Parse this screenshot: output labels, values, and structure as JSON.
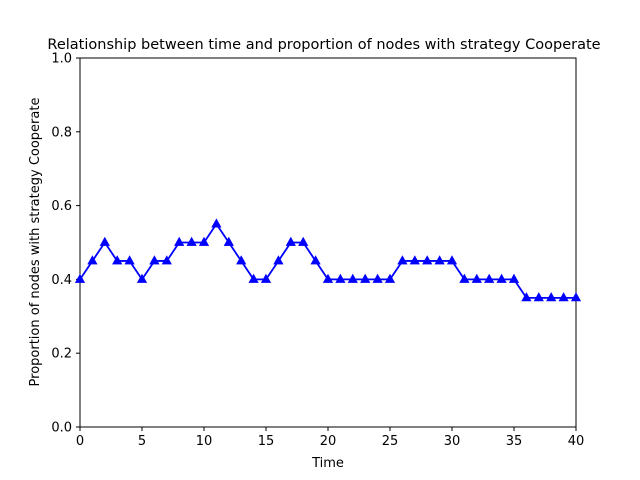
{
  "chart_data": {
    "type": "line",
    "title": "Relationship between time and proportion of nodes with strategy Cooperate",
    "xlabel": "Time",
    "ylabel": "Proportion of nodes with strategy Cooperate",
    "xlim": [
      0,
      40
    ],
    "ylim": [
      0.0,
      1.0
    ],
    "x_ticks": [
      "0",
      "5",
      "10",
      "15",
      "20",
      "25",
      "30",
      "35",
      "40"
    ],
    "y_ticks": [
      "0.0",
      "0.2",
      "0.4",
      "0.6",
      "0.8",
      "1.0"
    ],
    "grid": false,
    "legend": "none",
    "marker": "triangle",
    "series": [
      {
        "color": "#0000ff",
        "x": [
          0,
          1,
          2,
          3,
          4,
          5,
          6,
          7,
          8,
          9,
          10,
          11,
          12,
          13,
          14,
          15,
          16,
          17,
          18,
          19,
          20,
          21,
          22,
          23,
          24,
          25,
          26,
          27,
          28,
          29,
          30,
          31,
          32,
          33,
          34,
          35,
          36,
          37,
          38,
          39,
          40
        ],
        "values": [
          0.4,
          0.45,
          0.5,
          0.45,
          0.45,
          0.4,
          0.45,
          0.45,
          0.5,
          0.5,
          0.5,
          0.55,
          0.5,
          0.45,
          0.4,
          0.4,
          0.45,
          0.5,
          0.5,
          0.45,
          0.4,
          0.4,
          0.4,
          0.4,
          0.4,
          0.4,
          0.45,
          0.45,
          0.45,
          0.45,
          0.45,
          0.4,
          0.4,
          0.4,
          0.4,
          0.4,
          0.35,
          0.35,
          0.35,
          0.35,
          0.35
        ]
      }
    ]
  }
}
